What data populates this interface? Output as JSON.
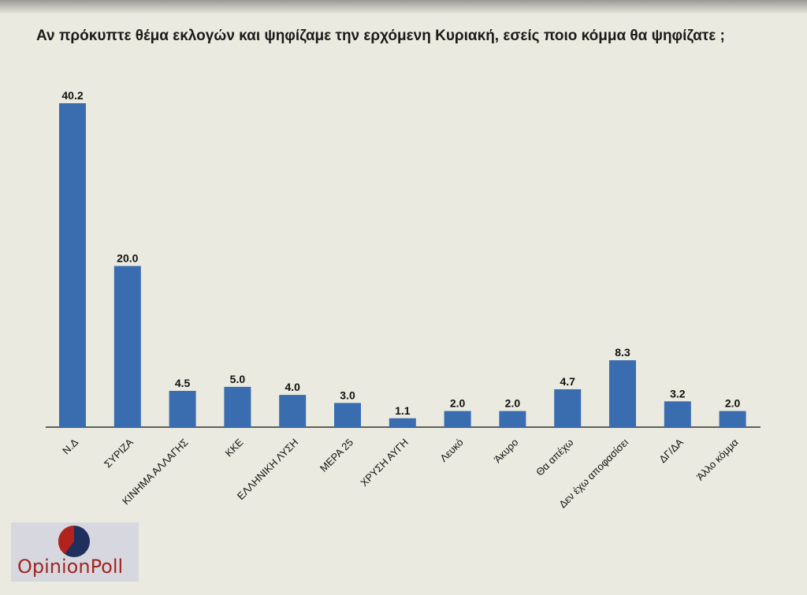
{
  "title": "Αν πρόκυπτε θέμα εκλογών και ψηφίζαμε την ερχόμενη Κυριακή, εσείς ποιο κόμμα θα ψηφίζατε ;",
  "logo": {
    "text": "OpinionPoll"
  },
  "colors": {
    "bar": "#3a6cb0",
    "background": "#ebeae0"
  },
  "chart_data": {
    "type": "bar",
    "title": "Αν πρόκυπτε θέμα εκλογών και ψηφίζαμε την ερχόμενη Κυριακή, εσείς ποιο κόμμα θα ψηφίζατε ;",
    "xlabel": "",
    "ylabel": "",
    "ylim": [
      0,
      40.2
    ],
    "categories": [
      "Ν.Δ",
      "ΣΥΡΙΖΑ",
      "ΚΙΝΗΜΑ ΑΛΛΑΓΗΣ",
      "ΚΚΕ",
      "ΕΛΛΗΝΙΚΗ ΛΥΣΗ",
      "ΜΕΡΑ 25",
      "ΧΡΥΣΗ ΑΥΓΗ",
      "Λευκό",
      "Άκυρο",
      "Θα απέχω",
      "Δεν έχω αποφασίσει",
      "ΔΓ/ΔΑ",
      "Άλλο κόμμα"
    ],
    "values": [
      40.2,
      20.0,
      4.5,
      5.0,
      4.0,
      3.0,
      1.1,
      2.0,
      2.0,
      4.7,
      8.3,
      3.2,
      2.0
    ],
    "data_labels": [
      "40.2",
      "20.0",
      "4.5",
      "5.0",
      "4.0",
      "3.0",
      "1.1",
      "2.0",
      "2.0",
      "4.7",
      "8.3",
      "3.2",
      "2.0"
    ],
    "grid": false,
    "legend": "none"
  }
}
